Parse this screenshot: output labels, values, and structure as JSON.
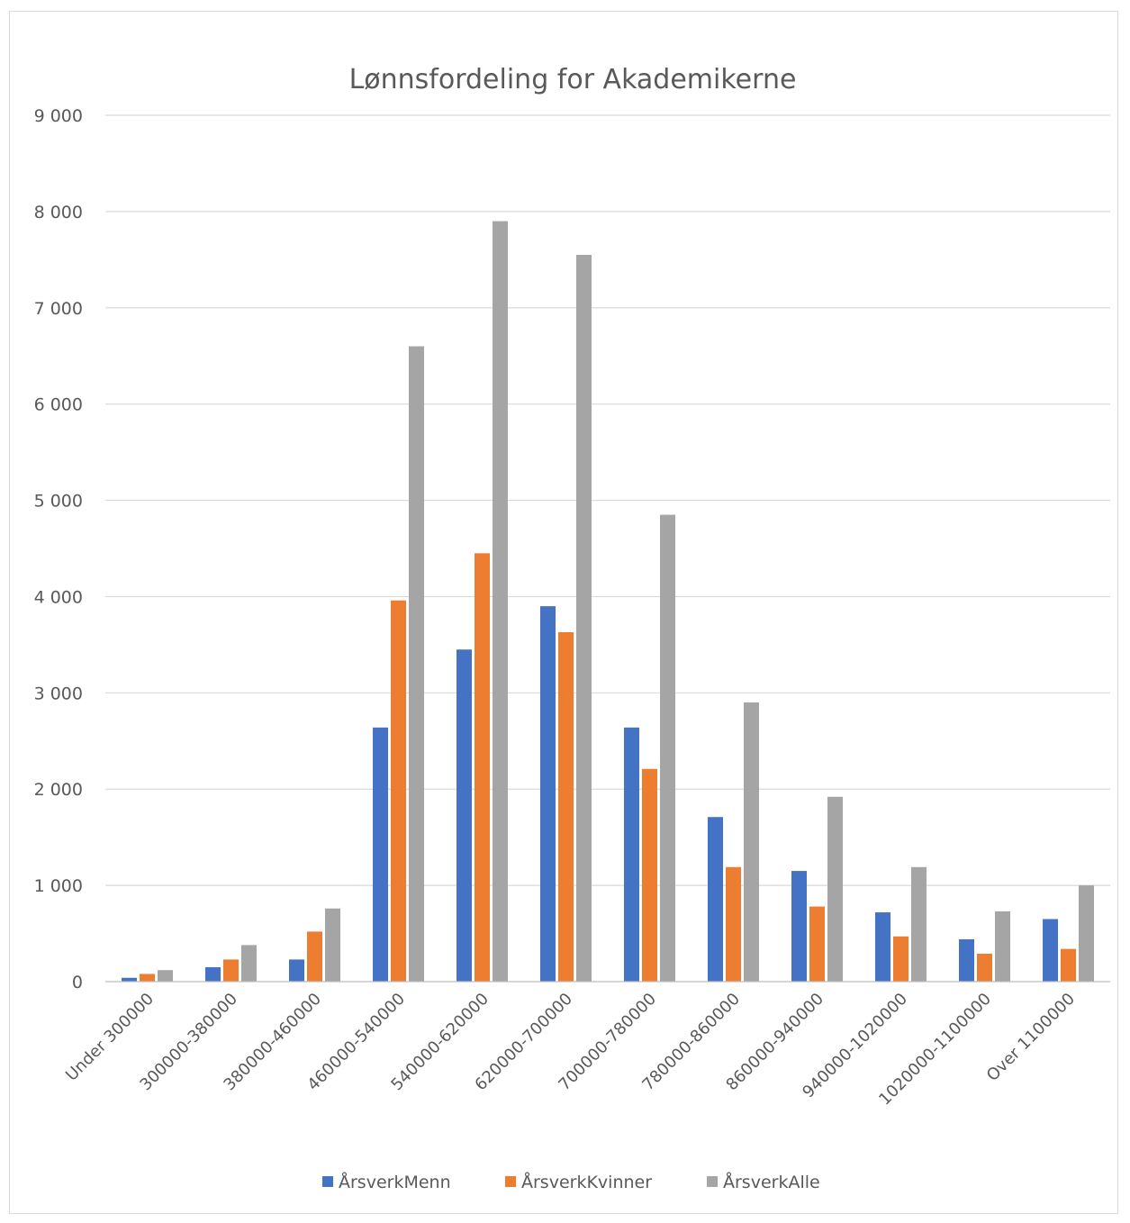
{
  "chart_data": {
    "type": "bar",
    "title": "Lønnsfordeling for Akademikerne",
    "xlabel": "",
    "ylabel": "",
    "ylim": [
      0,
      9000
    ],
    "yticks": [
      0,
      1000,
      2000,
      3000,
      4000,
      5000,
      6000,
      7000,
      8000,
      9000
    ],
    "ytick_labels": [
      "0",
      "1 000",
      "2 000",
      "3 000",
      "4 000",
      "5 000",
      "6 000",
      "7 000",
      "8 000",
      "9 000"
    ],
    "grid": true,
    "legend_position": "bottom",
    "categories": [
      "Under 300000",
      "300000-380000",
      "380000-460000",
      "460000-540000",
      "540000-620000",
      "620000-700000",
      "700000-780000",
      "780000-860000",
      "860000-940000",
      "940000-1020000",
      "1020000-1100000",
      "Over 1100000"
    ],
    "series": [
      {
        "name": "ÅrsverkMenn",
        "color": "#4472c4",
        "values": [
          40,
          150,
          230,
          2640,
          3450,
          3900,
          2640,
          1710,
          1150,
          720,
          440,
          650
        ]
      },
      {
        "name": "ÅrsverkKvinner",
        "color": "#ed7d31",
        "values": [
          80,
          230,
          520,
          3960,
          4450,
          3630,
          2210,
          1190,
          780,
          470,
          290,
          340
        ]
      },
      {
        "name": "ÅrsverkAlle",
        "color": "#a5a5a5",
        "values": [
          120,
          380,
          760,
          6600,
          7900,
          7550,
          4850,
          2900,
          1920,
          1190,
          730,
          1000
        ]
      }
    ]
  }
}
